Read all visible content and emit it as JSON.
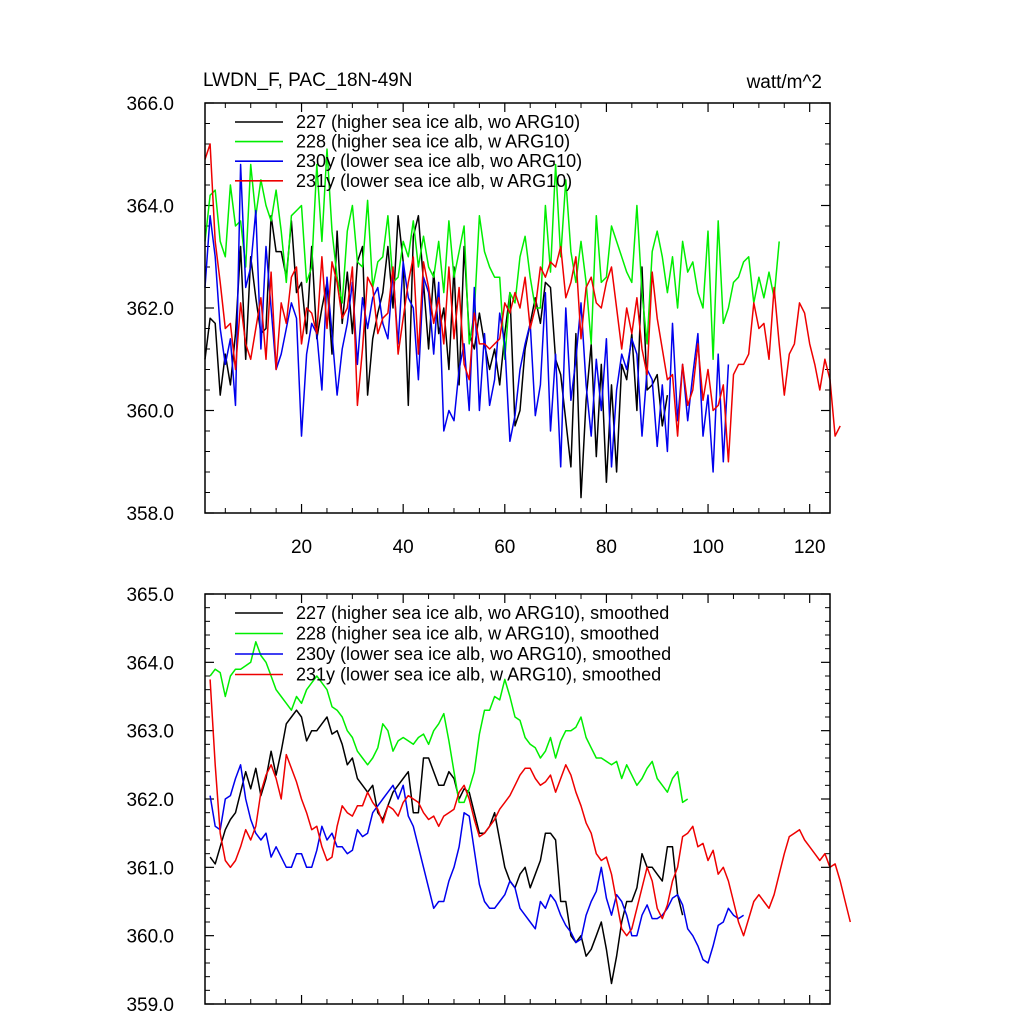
{
  "chart_data": [
    {
      "type": "line",
      "title": "LWDN_F, PAC_18N-49N",
      "units_label": "watt/m^2",
      "xlim": [
        1,
        124
      ],
      "ylim": [
        358.0,
        366.0
      ],
      "yticks": [
        "358.0",
        "360.0",
        "362.0",
        "364.0",
        "366.0"
      ],
      "xticks": [
        "20",
        "40",
        "60",
        "80",
        "100",
        "120"
      ],
      "series": [
        {
          "name": "227 (higher sea ice alb, wo ARG10)",
          "color": "#000000",
          "values": [
            361.0,
            361.8,
            361.7,
            360.3,
            361.1,
            360.5,
            361.5,
            363.2,
            361.0,
            363.0,
            362.2,
            361.5,
            361.6,
            363.8,
            363.1,
            363.1,
            362.6,
            363.7,
            362.3,
            362.5,
            361.5,
            363.2,
            361.4,
            362.0,
            362.5,
            361.1,
            363.5,
            361.7,
            362.7,
            361.5,
            362.9,
            363.2,
            360.3,
            361.4,
            361.9,
            362.3,
            363.2,
            362.0,
            363.8,
            362.9,
            360.1,
            363.4,
            363.8,
            362.5,
            361.2,
            362.7,
            361.5,
            362.0,
            360.8,
            362.8,
            360.5,
            363.2,
            361.5,
            361.2,
            361.9,
            361.3,
            360.8,
            361.2,
            360.5,
            361.5,
            362.3,
            359.7,
            360.0,
            361.2,
            361.7,
            362.2,
            361.7,
            362.5,
            362.4,
            361.0,
            360.7,
            359.8,
            358.9,
            361.5,
            358.3,
            360.2,
            361.3,
            359.1,
            360.9,
            358.6,
            360.5,
            358.8,
            360.9,
            360.6,
            361.5,
            360.0,
            362.8,
            360.4,
            360.5,
            360.7,
            359.7,
            360.3
          ]
        },
        {
          "name": "228 (higher sea ice alb, w ARG10)",
          "color": "#00ee00",
          "values": [
            363.3,
            364.2,
            364.3,
            363.3,
            363.0,
            364.4,
            363.6,
            363.7,
            362.8,
            364.8,
            363.8,
            364.5,
            364.0,
            363.7,
            364.3,
            363.5,
            362.5,
            363.8,
            363.9,
            364.0,
            362.5,
            362.8,
            364.8,
            363.3,
            365.1,
            363.5,
            362.6,
            362.1,
            363.5,
            364.0,
            362.9,
            362.8,
            364.1,
            362.4,
            362.9,
            363.0,
            363.8,
            362.5,
            362.6,
            363.3,
            363.0,
            363.7,
            362.8,
            363.4,
            362.8,
            362.6,
            363.3,
            362.3,
            363.7,
            362.6,
            363.1,
            363.6,
            361.3,
            361.9,
            363.8,
            363.1,
            362.8,
            362.6,
            362.6,
            361.0,
            362.3,
            362.1,
            363.0,
            363.4,
            362.6,
            362.0,
            362.0,
            364.0,
            362.7,
            364.8,
            363.0,
            364.5,
            363.1,
            362.5,
            363.3,
            362.5,
            361.3,
            363.8,
            362.5,
            362.6,
            363.6,
            363.3,
            363.0,
            362.7,
            362.5,
            364.0,
            362.3,
            361.3,
            363.1,
            363.5,
            363.0,
            362.3,
            363.0,
            362.0,
            363.3,
            362.7,
            362.9,
            362.3,
            362.0,
            363.5,
            361.0,
            363.7,
            361.7,
            362.0,
            362.5,
            362.6,
            362.9,
            363.0,
            362.1,
            362.6,
            362.2,
            362.7,
            362.2,
            363.3
          ]
        },
        {
          "name": "230y (lower sea ice alb, wo ARG10)",
          "color": "#0000ee",
          "values": [
            362.4,
            363.8,
            363.0,
            361.6,
            360.9,
            361.4,
            360.1,
            364.8,
            362.4,
            362.8,
            363.9,
            361.2,
            363.2,
            362.0,
            360.8,
            361.1,
            361.6,
            362.1,
            361.8,
            359.5,
            361.1,
            361.7,
            361.5,
            360.4,
            362.6,
            361.5,
            360.3,
            361.2,
            361.7,
            362.5,
            360.9,
            362.2,
            361.6,
            362.2,
            362.4,
            361.7,
            361.4,
            362.7,
            361.3,
            362.9,
            362.2,
            362.0,
            360.6,
            362.6,
            362.3,
            361.1,
            362.5,
            359.6,
            360.0,
            359.8,
            360.8,
            361.3,
            360.0,
            362.4,
            360.0,
            361.5,
            360.1,
            360.6,
            361.9,
            361.3,
            359.4,
            359.9,
            360.8,
            361.3,
            361.7,
            359.9,
            360.5,
            362.3,
            359.6,
            361.1,
            358.9,
            362.0,
            360.2,
            361.0,
            362.1,
            360.5,
            359.5,
            361.0,
            360.0,
            361.4,
            358.9,
            360.4,
            361.1,
            360.8,
            361.4,
            361.1,
            359.5,
            360.8,
            360.6,
            359.3,
            360.5,
            359.2,
            361.7,
            359.8,
            360.9,
            359.8,
            360.7,
            361.5,
            359.5,
            360.3,
            358.8,
            361.1,
            359.0,
            360.9
          ]
        },
        {
          "name": "231y (lower sea ice alb, w ARG10)",
          "color": "#ee0000",
          "values": [
            364.9,
            365.2,
            363.3,
            362.5,
            361.6,
            361.7,
            360.8,
            362.1,
            361.3,
            361.0,
            361.6,
            362.2,
            361.0,
            362.7,
            360.8,
            362.1,
            361.7,
            362.6,
            362.8,
            361.3,
            362.0,
            361.9,
            361.5,
            363.0,
            361.6,
            362.9,
            362.5,
            361.8,
            362.0,
            362.8,
            360.1,
            361.2,
            362.6,
            362.4,
            361.5,
            361.8,
            361.9,
            362.8,
            361.1,
            361.8,
            362.5,
            363.0,
            361.1,
            362.9,
            362.4,
            361.7,
            362.2,
            361.3,
            362.8,
            361.4,
            362.4,
            360.9,
            360.6,
            361.9,
            361.3,
            361.3,
            361.2,
            361.3,
            361.4,
            362.1,
            361.9,
            362.3,
            362.0,
            362.6,
            361.6,
            362.0,
            362.8,
            362.6,
            362.9,
            362.8,
            363.2,
            362.2,
            362.5,
            363.0,
            361.4,
            362.4,
            362.6,
            362.1,
            362.0,
            362.5,
            362.8,
            362.0,
            361.2,
            362.0,
            361.5,
            362.2,
            361.2,
            360.7,
            362.7,
            361.8,
            361.2,
            360.6,
            360.7,
            359.5,
            360.9,
            360.1,
            360.4,
            361.3,
            360.2,
            360.8,
            360.0,
            360.1,
            360.5,
            359.0,
            360.7,
            360.9,
            360.9,
            361.1,
            362.1,
            361.6,
            361.7,
            361.0,
            362.4,
            361.3,
            360.3,
            361.1,
            361.3,
            362.1,
            361.9,
            361.3,
            360.9,
            360.4,
            361.0,
            360.6,
            359.5,
            359.7
          ]
        }
      ]
    },
    {
      "type": "line",
      "title": "",
      "xlim": [
        1,
        124
      ],
      "ylim": [
        359.0,
        365.0
      ],
      "yticks": [
        "359.0",
        "360.0",
        "361.0",
        "362.0",
        "363.0",
        "364.0",
        "365.0"
      ],
      "xticks": [],
      "series": [
        {
          "name": "227 (higher sea ice alb, wo ARG10), smoothed",
          "color": "#000000",
          "values": [
            361.15,
            361.05,
            361.3,
            361.55,
            361.7,
            361.8,
            362.1,
            362.4,
            362.15,
            362.45,
            362.05,
            362.3,
            362.7,
            362.35,
            362.7,
            363.1,
            363.2,
            363.3,
            363.2,
            362.85,
            363.0,
            363.0,
            363.1,
            363.2,
            362.95,
            363.0,
            362.8,
            362.5,
            362.6,
            362.3,
            362.2,
            362.1,
            362.2,
            361.8,
            361.7,
            361.9,
            362.1,
            362.2,
            362.3,
            362.4,
            361.8,
            361.8,
            362.6,
            362.6,
            362.4,
            362.2,
            362.2,
            362.4,
            362.3,
            362.0,
            362.15,
            362.1,
            361.8,
            361.5,
            361.5,
            361.6,
            361.8,
            361.4,
            361.0,
            360.8,
            360.7,
            360.9,
            361.0,
            360.7,
            360.9,
            361.1,
            361.5,
            361.5,
            361.4,
            360.5,
            360.5,
            360.0,
            359.9,
            360.0,
            359.7,
            359.8,
            360.0,
            360.2,
            359.8,
            359.3,
            359.7,
            360.2,
            360.5,
            360.5,
            360.7,
            361.2,
            361.0,
            361.0,
            360.9,
            360.8,
            361.3,
            361.3,
            360.6,
            360.3
          ]
        },
        {
          "name": "228 (higher sea ice alb, w ARG10), smoothed",
          "color": "#00ee00",
          "values": [
            363.8,
            363.9,
            363.85,
            363.5,
            363.8,
            363.9,
            363.9,
            363.95,
            364.0,
            364.3,
            364.1,
            364.0,
            363.8,
            363.6,
            363.5,
            363.4,
            363.3,
            363.5,
            363.4,
            363.6,
            363.7,
            363.8,
            363.7,
            363.6,
            363.35,
            363.3,
            363.2,
            363.0,
            362.9,
            362.7,
            362.6,
            362.5,
            362.6,
            362.75,
            363.1,
            363.0,
            362.7,
            362.85,
            362.9,
            362.85,
            362.8,
            362.9,
            362.95,
            362.8,
            363.0,
            363.1,
            363.25,
            362.85,
            362.4,
            361.95,
            361.95,
            362.15,
            362.4,
            362.95,
            363.3,
            363.3,
            363.5,
            363.45,
            363.75,
            363.5,
            363.2,
            363.15,
            362.9,
            362.8,
            362.75,
            362.6,
            362.7,
            362.9,
            362.6,
            362.85,
            363.0,
            363.0,
            363.05,
            363.2,
            362.9,
            362.75,
            362.6,
            362.6,
            362.55,
            362.5,
            362.55,
            362.3,
            362.5,
            362.35,
            362.2,
            362.3,
            362.45,
            362.55,
            362.3,
            362.2,
            362.1,
            362.3,
            362.4,
            361.95,
            362.0
          ]
        },
        {
          "name": "230y (lower sea ice alb, wo ARG10), smoothed",
          "color": "#0000ee",
          "values": [
            362.05,
            361.6,
            361.55,
            362.0,
            362.05,
            362.3,
            362.5,
            362.0,
            361.7,
            361.5,
            361.4,
            361.5,
            361.15,
            361.3,
            361.15,
            361.0,
            361.0,
            361.2,
            361.2,
            361.0,
            361.0,
            361.25,
            361.6,
            361.4,
            361.5,
            361.3,
            361.3,
            361.2,
            361.25,
            361.55,
            361.45,
            361.5,
            361.8,
            361.9,
            362.0,
            362.1,
            362.2,
            362.0,
            362.2,
            361.75,
            361.6,
            361.3,
            361.0,
            360.7,
            360.4,
            360.5,
            360.5,
            360.8,
            361.0,
            361.3,
            361.8,
            361.75,
            361.25,
            360.75,
            360.5,
            360.4,
            360.4,
            360.5,
            360.6,
            360.8,
            360.7,
            360.4,
            360.3,
            360.2,
            360.1,
            360.5,
            360.4,
            360.6,
            360.5,
            360.3,
            360.15,
            360.05,
            359.9,
            359.95,
            360.3,
            360.5,
            360.65,
            361.0,
            360.55,
            360.3,
            360.6,
            360.5,
            360.3,
            360.0,
            360.0,
            360.3,
            360.45,
            360.25,
            360.25,
            360.3,
            360.4,
            360.55,
            360.6,
            360.45,
            360.1,
            360.0,
            359.85,
            359.65,
            359.6,
            359.85,
            360.15,
            360.2,
            360.4,
            360.3,
            360.25,
            360.3
          ]
        },
        {
          "name": "231y (lower sea ice alb, w ARG10), smoothed",
          "color": "#ee0000",
          "values": [
            363.75,
            362.5,
            361.5,
            361.1,
            361.0,
            361.1,
            361.3,
            361.55,
            361.4,
            361.6,
            362.1,
            362.35,
            362.5,
            362.3,
            362.0,
            362.65,
            362.45,
            362.25,
            362.0,
            361.8,
            361.55,
            361.6,
            361.3,
            361.1,
            361.15,
            361.6,
            361.9,
            361.8,
            361.75,
            361.9,
            361.9,
            362.1,
            361.95,
            361.85,
            361.65,
            361.9,
            361.85,
            361.75,
            361.95,
            362.05,
            362.0,
            361.95,
            361.8,
            361.7,
            361.75,
            361.6,
            361.75,
            361.8,
            361.85,
            362.1,
            362.2,
            362.0,
            361.7,
            361.45,
            361.5,
            361.6,
            361.7,
            361.85,
            361.95,
            362.05,
            362.2,
            362.35,
            362.45,
            362.45,
            362.3,
            362.2,
            362.25,
            362.35,
            362.1,
            362.3,
            362.5,
            362.35,
            362.1,
            361.9,
            361.65,
            361.5,
            361.2,
            361.1,
            361.15,
            360.9,
            360.5,
            360.1,
            360.0,
            360.1,
            360.4,
            360.7,
            361.0,
            360.8,
            360.4,
            360.25,
            360.45,
            360.8,
            361.0,
            361.45,
            361.5,
            361.6,
            361.3,
            361.35,
            361.1,
            361.25,
            360.9,
            361.0,
            360.8,
            360.5,
            360.2,
            360.0,
            360.25,
            360.5,
            360.6,
            360.5,
            360.4,
            360.6,
            360.9,
            361.2,
            361.45,
            361.5,
            361.55,
            361.4,
            361.3,
            361.2,
            361.1,
            361.2,
            361.0,
            361.05,
            360.8,
            360.5,
            360.2
          ]
        }
      ]
    }
  ]
}
